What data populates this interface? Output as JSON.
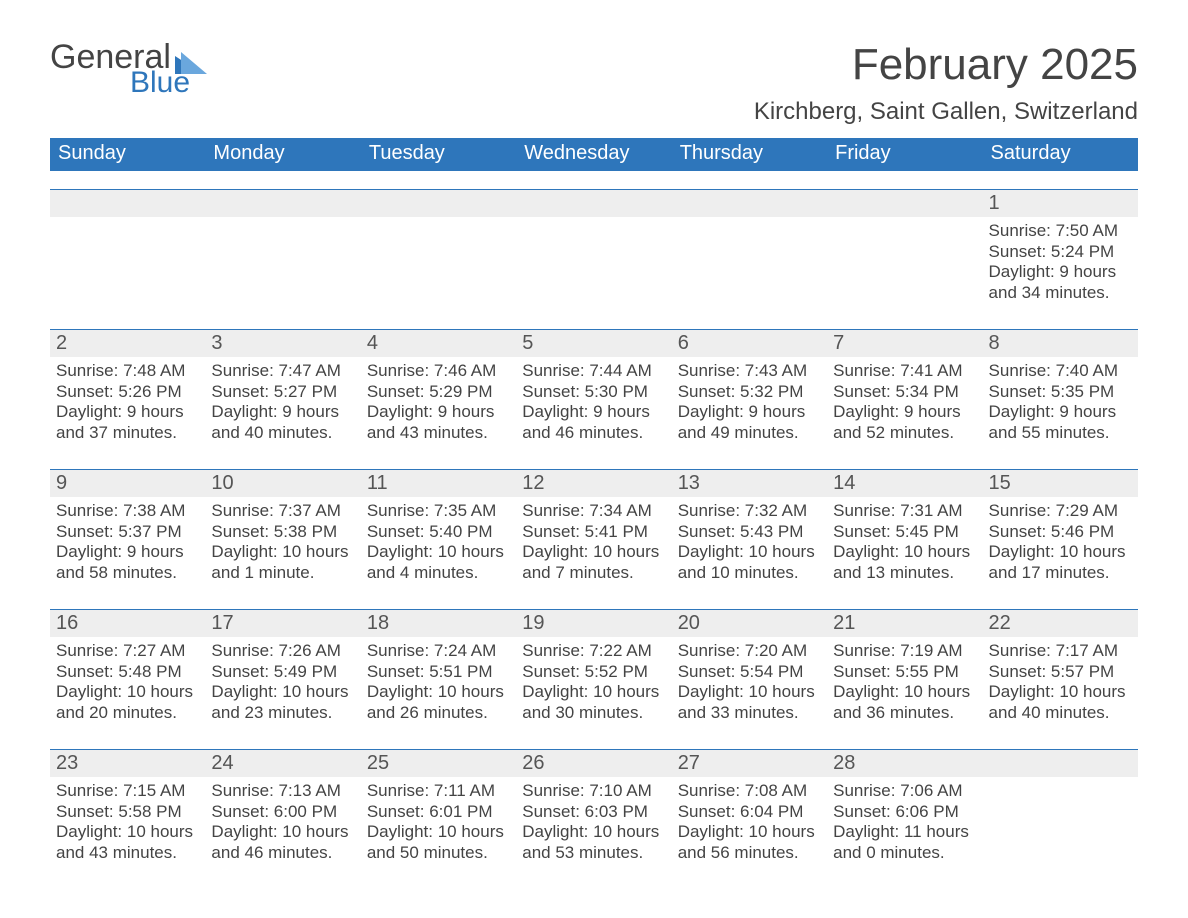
{
  "brand": {
    "word1": "General",
    "word2": "Blue",
    "accent_color": "#2e76bb",
    "text_color": "#444444"
  },
  "title": "February 2025",
  "location": "Kirchberg, Saint Gallen, Switzerland",
  "colors": {
    "header_bg": "#2e76bb",
    "header_text": "#ffffff",
    "daynum_bg": "#eeeeee",
    "rule": "#2e76bb",
    "body_text": "#444444",
    "page_bg": "#ffffff"
  },
  "typography": {
    "title_fontsize": 44,
    "location_fontsize": 24,
    "dow_fontsize": 20,
    "daynum_fontsize": 20,
    "detail_fontsize": 17
  },
  "days_of_week": [
    "Sunday",
    "Monday",
    "Tuesday",
    "Wednesday",
    "Thursday",
    "Friday",
    "Saturday"
  ],
  "weeks": [
    {
      "daynums": [
        "",
        "",
        "",
        "",
        "",
        "",
        "1"
      ],
      "details": [
        "",
        "",
        "",
        "",
        "",
        "",
        "Sunrise: 7:50 AM\nSunset: 5:24 PM\nDaylight: 9 hours and 34 minutes."
      ]
    },
    {
      "daynums": [
        "2",
        "3",
        "4",
        "5",
        "6",
        "7",
        "8"
      ],
      "details": [
        "Sunrise: 7:48 AM\nSunset: 5:26 PM\nDaylight: 9 hours and 37 minutes.",
        "Sunrise: 7:47 AM\nSunset: 5:27 PM\nDaylight: 9 hours and 40 minutes.",
        "Sunrise: 7:46 AM\nSunset: 5:29 PM\nDaylight: 9 hours and 43 minutes.",
        "Sunrise: 7:44 AM\nSunset: 5:30 PM\nDaylight: 9 hours and 46 minutes.",
        "Sunrise: 7:43 AM\nSunset: 5:32 PM\nDaylight: 9 hours and 49 minutes.",
        "Sunrise: 7:41 AM\nSunset: 5:34 PM\nDaylight: 9 hours and 52 minutes.",
        "Sunrise: 7:40 AM\nSunset: 5:35 PM\nDaylight: 9 hours and 55 minutes."
      ]
    },
    {
      "daynums": [
        "9",
        "10",
        "11",
        "12",
        "13",
        "14",
        "15"
      ],
      "details": [
        "Sunrise: 7:38 AM\nSunset: 5:37 PM\nDaylight: 9 hours and 58 minutes.",
        "Sunrise: 7:37 AM\nSunset: 5:38 PM\nDaylight: 10 hours and 1 minute.",
        "Sunrise: 7:35 AM\nSunset: 5:40 PM\nDaylight: 10 hours and 4 minutes.",
        "Sunrise: 7:34 AM\nSunset: 5:41 PM\nDaylight: 10 hours and 7 minutes.",
        "Sunrise: 7:32 AM\nSunset: 5:43 PM\nDaylight: 10 hours and 10 minutes.",
        "Sunrise: 7:31 AM\nSunset: 5:45 PM\nDaylight: 10 hours and 13 minutes.",
        "Sunrise: 7:29 AM\nSunset: 5:46 PM\nDaylight: 10 hours and 17 minutes."
      ]
    },
    {
      "daynums": [
        "16",
        "17",
        "18",
        "19",
        "20",
        "21",
        "22"
      ],
      "details": [
        "Sunrise: 7:27 AM\nSunset: 5:48 PM\nDaylight: 10 hours and 20 minutes.",
        "Sunrise: 7:26 AM\nSunset: 5:49 PM\nDaylight: 10 hours and 23 minutes.",
        "Sunrise: 7:24 AM\nSunset: 5:51 PM\nDaylight: 10 hours and 26 minutes.",
        "Sunrise: 7:22 AM\nSunset: 5:52 PM\nDaylight: 10 hours and 30 minutes.",
        "Sunrise: 7:20 AM\nSunset: 5:54 PM\nDaylight: 10 hours and 33 minutes.",
        "Sunrise: 7:19 AM\nSunset: 5:55 PM\nDaylight: 10 hours and 36 minutes.",
        "Sunrise: 7:17 AM\nSunset: 5:57 PM\nDaylight: 10 hours and 40 minutes."
      ]
    },
    {
      "daynums": [
        "23",
        "24",
        "25",
        "26",
        "27",
        "28",
        ""
      ],
      "details": [
        "Sunrise: 7:15 AM\nSunset: 5:58 PM\nDaylight: 10 hours and 43 minutes.",
        "Sunrise: 7:13 AM\nSunset: 6:00 PM\nDaylight: 10 hours and 46 minutes.",
        "Sunrise: 7:11 AM\nSunset: 6:01 PM\nDaylight: 10 hours and 50 minutes.",
        "Sunrise: 7:10 AM\nSunset: 6:03 PM\nDaylight: 10 hours and 53 minutes.",
        "Sunrise: 7:08 AM\nSunset: 6:04 PM\nDaylight: 10 hours and 56 minutes.",
        "Sunrise: 7:06 AM\nSunset: 6:06 PM\nDaylight: 11 hours and 0 minutes.",
        ""
      ]
    }
  ]
}
